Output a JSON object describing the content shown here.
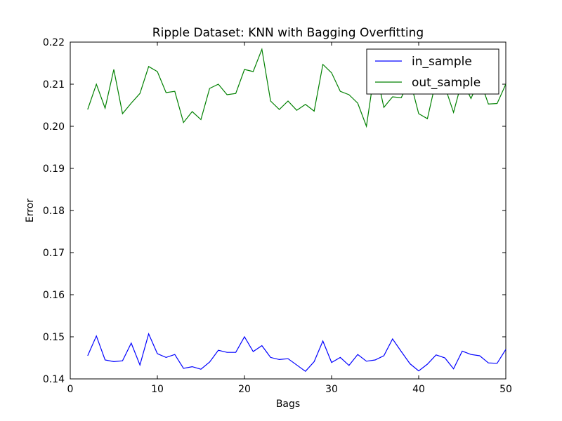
{
  "chart_data": {
    "type": "line",
    "title": "Ripple Dataset: KNN with Bagging Overfitting",
    "xlabel": "Bags",
    "ylabel": "Error",
    "xlim": [
      0,
      50
    ],
    "ylim": [
      0.14,
      0.22
    ],
    "xticks": [
      "0",
      "10",
      "20",
      "30",
      "40",
      "50"
    ],
    "yticks": [
      "0.14",
      "0.15",
      "0.16",
      "0.17",
      "0.18",
      "0.19",
      "0.20",
      "0.21",
      "0.22"
    ],
    "grid": false,
    "legend_position": "top-right",
    "x": [
      2,
      3,
      4,
      5,
      6,
      7,
      8,
      9,
      10,
      11,
      12,
      13,
      14,
      15,
      16,
      17,
      18,
      19,
      20,
      21,
      22,
      23,
      24,
      25,
      26,
      27,
      28,
      29,
      30,
      31,
      32,
      33,
      34,
      35,
      36,
      37,
      38,
      39,
      40,
      41,
      42,
      43,
      44,
      45,
      46,
      47,
      48,
      49,
      50
    ],
    "series": [
      {
        "name": "in_sample",
        "color": "#0000ff",
        "values": [
          0.1455,
          0.1502,
          0.1445,
          0.1441,
          0.1443,
          0.1485,
          0.1433,
          0.1507,
          0.146,
          0.1451,
          0.1458,
          0.1425,
          0.1429,
          0.1423,
          0.144,
          0.1468,
          0.1463,
          0.1463,
          0.15,
          0.1465,
          0.1479,
          0.1451,
          0.1446,
          0.1448,
          0.1433,
          0.1418,
          0.1441,
          0.149,
          0.1439,
          0.1451,
          0.1432,
          0.1458,
          0.1442,
          0.1445,
          0.1455,
          0.1495,
          0.1465,
          0.1436,
          0.1419,
          0.1435,
          0.1457,
          0.145,
          0.1424,
          0.1466,
          0.1458,
          0.1455,
          0.1438,
          0.1437,
          0.147
        ]
      },
      {
        "name": "out_sample",
        "color": "#008000",
        "values": [
          0.204,
          0.21,
          0.2043,
          0.2135,
          0.203,
          0.2055,
          0.2078,
          0.2142,
          0.213,
          0.208,
          0.2083,
          0.2009,
          0.2035,
          0.2016,
          0.209,
          0.21,
          0.2075,
          0.2078,
          0.2135,
          0.213,
          0.2183,
          0.206,
          0.204,
          0.206,
          0.2038,
          0.2052,
          0.2036,
          0.2147,
          0.2127,
          0.2083,
          0.2075,
          0.2055,
          0.2,
          0.214,
          0.2045,
          0.207,
          0.2068,
          0.211,
          0.203,
          0.2018,
          0.211,
          0.2095,
          0.2033,
          0.211,
          0.2066,
          0.2112,
          0.2053,
          0.2054,
          0.21
        ]
      }
    ]
  }
}
